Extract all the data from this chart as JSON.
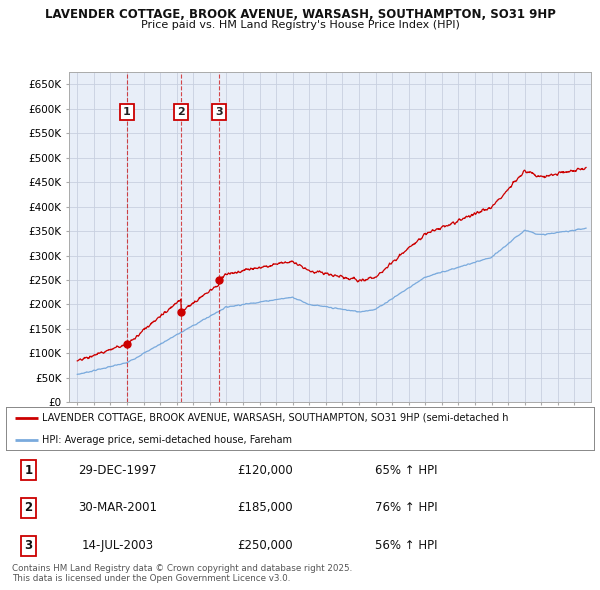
{
  "title_line1": "LAVENDER COTTAGE, BROOK AVENUE, WARSASH, SOUTHAMPTON, SO31 9HP",
  "title_line2": "Price paid vs. HM Land Registry's House Price Index (HPI)",
  "background_color": "#ffffff",
  "grid_color": "#c8d0e0",
  "plot_bg_color": "#e8eef8",
  "red_line_color": "#cc0000",
  "blue_line_color": "#7aaadd",
  "ylim": [
    0,
    675000
  ],
  "yticks": [
    0,
    50000,
    100000,
    150000,
    200000,
    250000,
    300000,
    350000,
    400000,
    450000,
    500000,
    550000,
    600000,
    650000
  ],
  "ytick_labels": [
    "£0",
    "£50K",
    "£100K",
    "£150K",
    "£200K",
    "£250K",
    "£300K",
    "£350K",
    "£400K",
    "£450K",
    "£500K",
    "£550K",
    "£600K",
    "£650K"
  ],
  "xlim_start": 1994.5,
  "xlim_end": 2026.0,
  "transactions": [
    {
      "label": "1",
      "date": "29-DEC-1997",
      "year": 1997.99,
      "price": 120000,
      "hpi_change": "65% ↑ HPI"
    },
    {
      "label": "2",
      "date": "30-MAR-2001",
      "year": 2001.25,
      "price": 185000,
      "hpi_change": "76% ↑ HPI"
    },
    {
      "label": "3",
      "date": "14-JUL-2003",
      "year": 2003.54,
      "price": 250000,
      "hpi_change": "56% ↑ HPI"
    }
  ],
  "legend_red_label": "LAVENDER COTTAGE, BROOK AVENUE, WARSASH, SOUTHAMPTON, SO31 9HP (semi-detached h",
  "legend_blue_label": "HPI: Average price, semi-detached house, Fareham",
  "footer_text": "Contains HM Land Registry data © Crown copyright and database right 2025.\nThis data is licensed under the Open Government Licence v3.0.",
  "table_rows": [
    {
      "num": "1",
      "date": "29-DEC-1997",
      "price": "£120,000",
      "hpi": "65% ↑ HPI"
    },
    {
      "num": "2",
      "date": "30-MAR-2001",
      "price": "£185,000",
      "hpi": "76% ↑ HPI"
    },
    {
      "num": "3",
      "date": "14-JUL-2003",
      "price": "£250,000",
      "hpi": "56% ↑ HPI"
    }
  ]
}
